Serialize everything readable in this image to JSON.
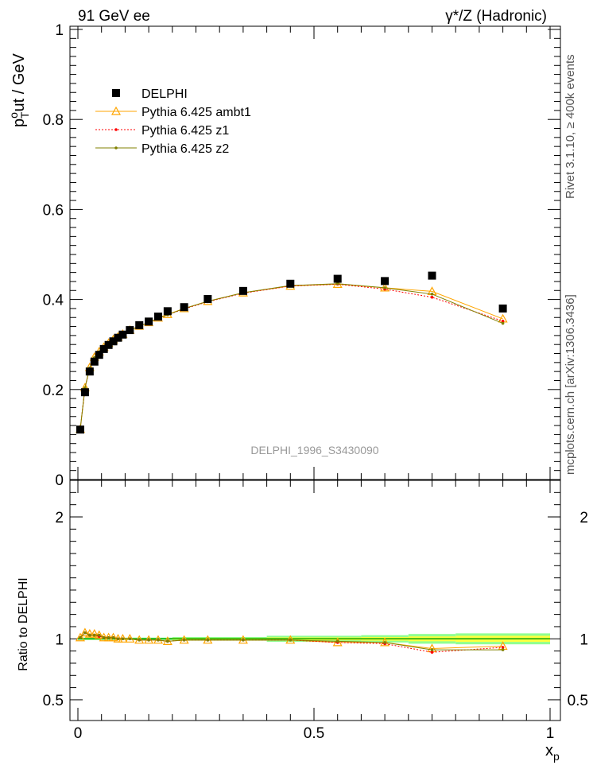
{
  "header": {
    "left_title": "91 GeV ee",
    "right_title": "γ*/Z (Hadronic)",
    "side_text_top": "Rivet 3.1.10, ≥ 400k events",
    "side_text_bottom": "mcplots.cern.ch [arXiv:1306.3436]",
    "watermark": "DELPHI_1996_S3430090"
  },
  "axes": {
    "ylabel_main_base": "p",
    "ylabel_main_sup": "o",
    "ylabel_main_sub": "T",
    "ylabel_main_rest": "ut / GeV",
    "ylabel_ratio": "Ratio to DELPHI",
    "xlabel_base": "x",
    "xlabel_sub": "p"
  },
  "colors": {
    "delphi": "#000000",
    "ambt1": "#ffa500",
    "z1": "#ff0000",
    "z2": "#808000",
    "band_inner": "#ffff40",
    "band_outer": "#90ff90",
    "unity_line": "#00a000"
  },
  "chart_data": [
    {
      "type": "scatter",
      "title": "",
      "xlabel": "x_p",
      "ylabel": "p_T^out / GeV",
      "xlim": [
        0,
        1
      ],
      "ylim": [
        0,
        1
      ],
      "x_ticks": [
        "0",
        "0.5",
        "1"
      ],
      "y_ticks": [
        "0",
        "0.2",
        "0.4",
        "0.6",
        "0.8",
        "1"
      ],
      "legend_position": "top-left",
      "x": [
        0.005,
        0.015,
        0.025,
        0.035,
        0.045,
        0.055,
        0.065,
        0.075,
        0.085,
        0.095,
        0.11,
        0.13,
        0.15,
        0.17,
        0.19,
        0.225,
        0.275,
        0.35,
        0.45,
        0.55,
        0.65,
        0.75,
        0.9
      ],
      "series": [
        {
          "name": "DELPHI",
          "marker": "square",
          "values": [
            0.111,
            0.194,
            0.24,
            0.262,
            0.277,
            0.29,
            0.299,
            0.307,
            0.315,
            0.322,
            0.332,
            0.343,
            0.351,
            0.362,
            0.374,
            0.383,
            0.401,
            0.419,
            0.435,
            0.446,
            0.441,
            0.453,
            0.38
          ]
        },
        {
          "name": "Pythia 6.425 ambt1",
          "marker": "triangle",
          "values": [
            0.112,
            0.204,
            0.249,
            0.272,
            0.284,
            0.294,
            0.303,
            0.311,
            0.317,
            0.323,
            0.332,
            0.341,
            0.349,
            0.359,
            0.367,
            0.38,
            0.396,
            0.415,
            0.43,
            0.434,
            0.426,
            0.418,
            0.357
          ]
        },
        {
          "name": "Pythia 6.425 z1",
          "marker": "dot",
          "values": [
            0.112,
            0.203,
            0.247,
            0.27,
            0.283,
            0.293,
            0.302,
            0.31,
            0.316,
            0.322,
            0.331,
            0.341,
            0.349,
            0.358,
            0.366,
            0.379,
            0.395,
            0.414,
            0.43,
            0.434,
            0.423,
            0.405,
            0.352
          ]
        },
        {
          "name": "Pythia 6.425 z2",
          "marker": "dot",
          "values": [
            0.112,
            0.204,
            0.248,
            0.271,
            0.284,
            0.294,
            0.303,
            0.31,
            0.316,
            0.322,
            0.331,
            0.341,
            0.349,
            0.358,
            0.366,
            0.38,
            0.396,
            0.415,
            0.431,
            0.435,
            0.426,
            0.412,
            0.347
          ]
        }
      ]
    },
    {
      "type": "line",
      "title": "",
      "xlabel": "x_p",
      "ylabel": "Ratio to DELPHI",
      "xlim": [
        0,
        1
      ],
      "ylim": [
        0.33,
        2.3
      ],
      "x_ticks": [
        "0",
        "0.5",
        "1"
      ],
      "y_ticks": [
        "0.5",
        "1",
        "2"
      ],
      "x": [
        0.005,
        0.015,
        0.025,
        0.035,
        0.045,
        0.055,
        0.065,
        0.075,
        0.085,
        0.095,
        0.11,
        0.13,
        0.15,
        0.17,
        0.19,
        0.225,
        0.275,
        0.35,
        0.45,
        0.55,
        0.65,
        0.75,
        0.9
      ],
      "series": [
        {
          "name": "Pythia 6.425 ambt1",
          "values": [
            1.01,
            1.05,
            1.04,
            1.04,
            1.03,
            1.01,
            1.01,
            1.01,
            1.0,
            1.0,
            1.0,
            0.99,
            0.99,
            0.99,
            0.98,
            0.99,
            0.99,
            0.99,
            0.99,
            0.97,
            0.97,
            0.92,
            0.94
          ]
        },
        {
          "name": "Pythia 6.425 z1",
          "values": [
            1.01,
            1.05,
            1.03,
            1.03,
            1.02,
            1.01,
            1.01,
            1.01,
            1.0,
            1.0,
            1.0,
            0.99,
            0.99,
            0.99,
            0.98,
            0.99,
            0.99,
            0.99,
            0.99,
            0.97,
            0.96,
            0.89,
            0.93
          ]
        },
        {
          "name": "Pythia 6.425 z2",
          "values": [
            1.01,
            1.05,
            1.03,
            1.03,
            1.03,
            1.01,
            1.01,
            1.01,
            1.0,
            1.0,
            1.0,
            0.99,
            0.99,
            0.99,
            0.98,
            0.99,
            0.99,
            0.99,
            0.99,
            0.98,
            0.97,
            0.91,
            0.91
          ]
        }
      ],
      "band_x_edges": [
        0,
        0.2,
        0.4,
        0.6,
        0.7,
        0.8,
        1.0
      ],
      "band_outer_halfwidth": [
        0.01,
        0.015,
        0.025,
        0.03,
        0.04,
        0.045
      ],
      "band_inner_halfwidth": [
        0.005,
        0.008,
        0.012,
        0.015,
        0.02,
        0.025
      ]
    }
  ]
}
